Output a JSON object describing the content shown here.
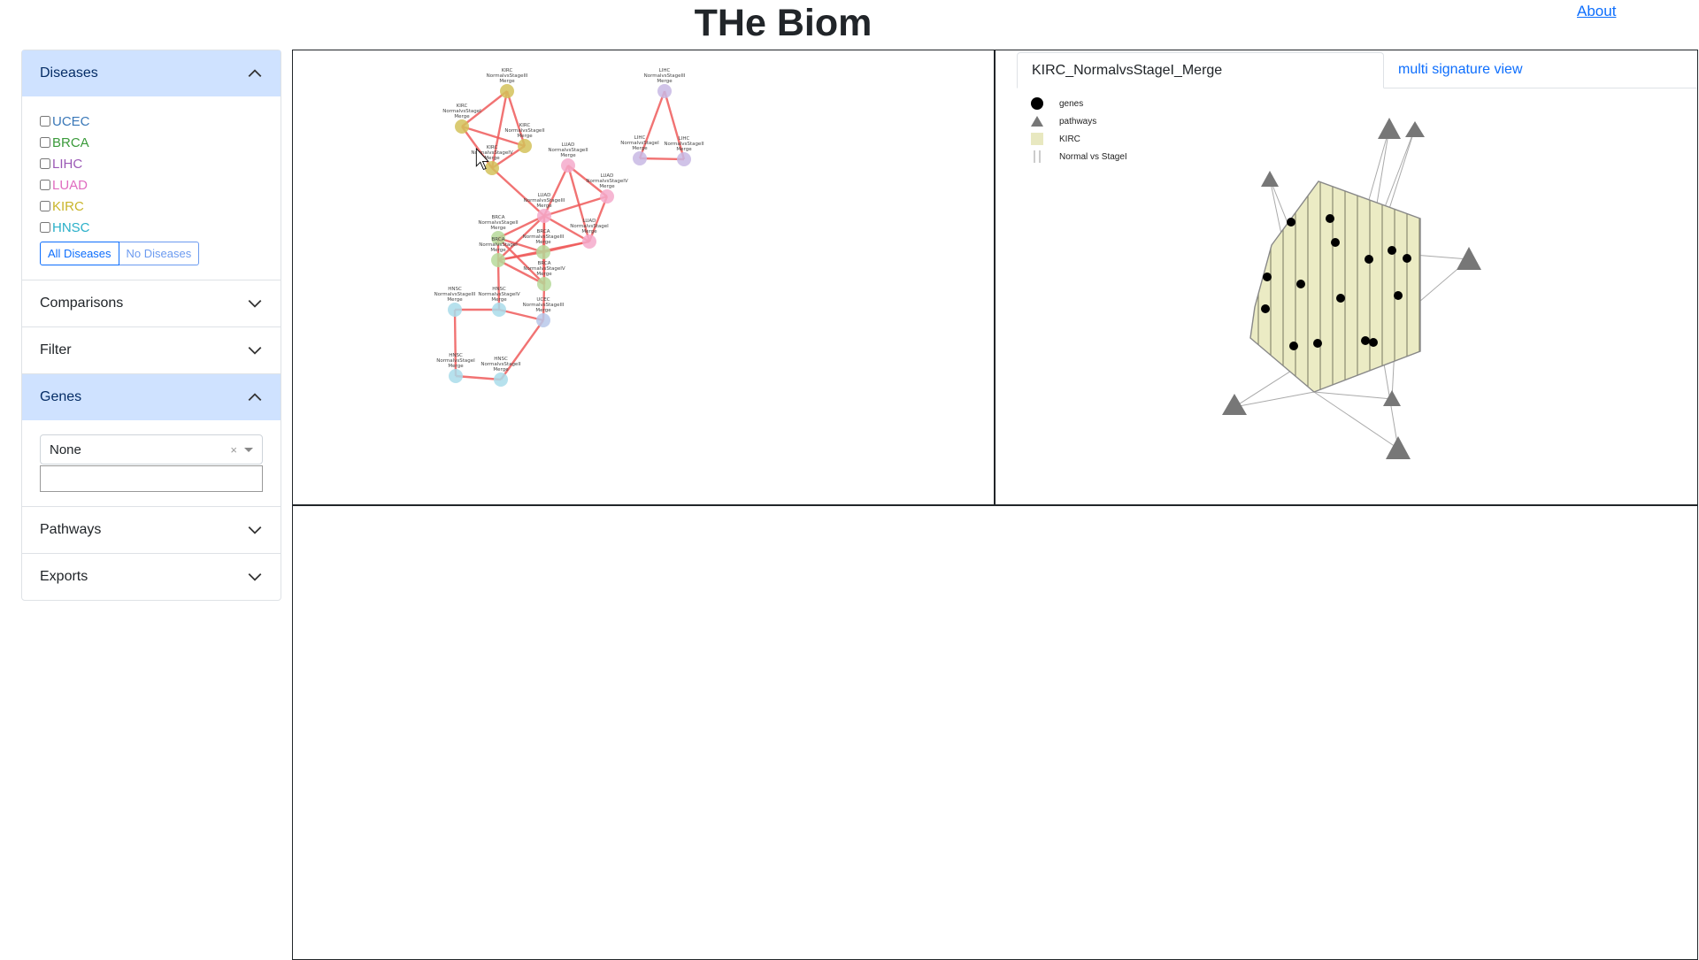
{
  "header": {
    "title": "THe Biom",
    "about_label": "About"
  },
  "sidebar": {
    "diseases": {
      "label": "Diseases",
      "items": [
        {
          "label": "UCEC",
          "color": "#3a78b8"
        },
        {
          "label": "BRCA",
          "color": "#3a9a3a"
        },
        {
          "label": "LIHC",
          "color": "#9b59b6"
        },
        {
          "label": "LUAD",
          "color": "#e06cc0"
        },
        {
          "label": "KIRC",
          "color": "#c9b52a"
        },
        {
          "label": "HNSC",
          "color": "#2ab0c9"
        }
      ],
      "all_button": "All Diseases",
      "none_button": "No Diseases"
    },
    "comparisons_label": "Comparisons",
    "filter_label": "Filter",
    "genes": {
      "label": "Genes",
      "selected": "None",
      "clear_glyph": "×",
      "input_value": ""
    },
    "pathways_label": "Pathways",
    "exports_label": "Exports"
  },
  "detail": {
    "tab_active": "KIRC_NormalvsStageI_Merge",
    "tab_other": "multi signature view",
    "legend": {
      "genes": "genes",
      "pathways": "pathways",
      "disease": "KIRC",
      "comparison": "Normal vs StageI"
    },
    "colors": {
      "hull_fill": "#e8e8c0",
      "hull_stroke": "#888",
      "gene": "#000000",
      "pathway": "#777777"
    }
  },
  "network": {
    "nodes": [
      {
        "id": "kirc1",
        "l1": "KIRC",
        "l2": "NormalvsStageIII",
        "l3": "Merge",
        "color": "#d4c25a"
      },
      {
        "id": "kirc2",
        "l1": "KIRC",
        "l2": "NormalvsStageII",
        "l3": "Merge",
        "color": "#d4c25a"
      },
      {
        "id": "kirc3",
        "l1": "KIRC",
        "l2": "NormalvsStageI",
        "l3": "Merge",
        "color": "#d4c25a"
      },
      {
        "id": "kirc4",
        "l1": "KIRC",
        "l2": "NormalvsStageIV",
        "l3": "Merge",
        "color": "#d4c25a"
      },
      {
        "id": "lihc1",
        "l1": "LIHC",
        "l2": "NormalvsStageIII",
        "l3": "Merge",
        "color": "#c8b8e4"
      },
      {
        "id": "lihc2",
        "l1": "LIHC",
        "l2": "NormalvsStageII",
        "l3": "Merge",
        "color": "#c8b8e4"
      },
      {
        "id": "lihc3",
        "l1": "LIHC",
        "l2": "NormalvsStageI",
        "l3": "Merge",
        "color": "#c8b8e4"
      },
      {
        "id": "luad1",
        "l1": "LUAD",
        "l2": "NormalvsStageII",
        "l3": "Merge",
        "color": "#f4aacb"
      },
      {
        "id": "luad2",
        "l1": "LUAD",
        "l2": "NormalvsStageIII",
        "l3": "Merge",
        "color": "#f4aacb"
      },
      {
        "id": "luad3",
        "l1": "LUAD",
        "l2": "NormalvsStageIV",
        "l3": "Merge",
        "color": "#f4aacb"
      },
      {
        "id": "luad4",
        "l1": "LUAD",
        "l2": "NormalvsStageI",
        "l3": "Merge",
        "color": "#f4aacb"
      },
      {
        "id": "brca1",
        "l1": "BRCA",
        "l2": "NormalvsStageII",
        "l3": "Merge",
        "color": "#b6d99a"
      },
      {
        "id": "brca2",
        "l1": "BRCA",
        "l2": "NormalvsStageI",
        "l3": "Merge",
        "color": "#b6d99a"
      },
      {
        "id": "brca3",
        "l1": "BRCA",
        "l2": "NormalvsStageIII",
        "l3": "Merge",
        "color": "#b6d99a"
      },
      {
        "id": "brca4",
        "l1": "BRCA",
        "l2": "NormalvsStageIV",
        "l3": "Merge",
        "color": "#b6d99a"
      },
      {
        "id": "hnsc1",
        "l1": "HNSC",
        "l2": "NormalvsStageIII",
        "l3": "Merge",
        "color": "#a9dcea"
      },
      {
        "id": "hnsc2",
        "l1": "HNSC",
        "l2": "NormalvsStageIV",
        "l3": "Merge",
        "color": "#a9dcea"
      },
      {
        "id": "ucec1",
        "l1": "UCEC",
        "l2": "NormalvsStageIII",
        "l3": "Merge",
        "color": "#b7c8ea"
      },
      {
        "id": "hnsc3",
        "l1": "HNSC",
        "l2": "NormalvsStageI",
        "l3": "Merge",
        "color": "#a9dcea"
      },
      {
        "id": "hnsc4",
        "l1": "HNSC",
        "l2": "NormalvsStageII",
        "l3": "Merge",
        "color": "#a9dcea"
      }
    ],
    "edges": [
      [
        "kirc1",
        "kirc2"
      ],
      [
        "kirc1",
        "kirc3"
      ],
      [
        "kirc1",
        "kirc4"
      ],
      [
        "kirc2",
        "kirc3"
      ],
      [
        "kirc2",
        "kirc4"
      ],
      [
        "kirc3",
        "kirc4"
      ],
      [
        "lihc1",
        "lihc2"
      ],
      [
        "lihc1",
        "lihc3"
      ],
      [
        "lihc2",
        "lihc3"
      ],
      [
        "kirc4",
        "luad2"
      ],
      [
        "luad1",
        "luad2"
      ],
      [
        "luad1",
        "luad3"
      ],
      [
        "luad1",
        "luad4"
      ],
      [
        "luad2",
        "luad3"
      ],
      [
        "luad2",
        "luad4"
      ],
      [
        "luad3",
        "luad4"
      ],
      [
        "luad2",
        "brca1"
      ],
      [
        "luad2",
        "brca2"
      ],
      [
        "luad2",
        "brca3"
      ],
      [
        "luad2",
        "brca4"
      ],
      [
        "luad4",
        "brca3"
      ],
      [
        "luad4",
        "brca2"
      ],
      [
        "brca1",
        "brca2"
      ],
      [
        "brca1",
        "brca3"
      ],
      [
        "brca1",
        "brca4"
      ],
      [
        "brca2",
        "brca3"
      ],
      [
        "brca2",
        "brca4"
      ],
      [
        "brca3",
        "brca4"
      ],
      [
        "brca2",
        "hnsc2"
      ],
      [
        "hnsc1",
        "hnsc2"
      ],
      [
        "hnsc1",
        "hnsc3"
      ],
      [
        "hnsc2",
        "ucec1"
      ],
      [
        "hnsc3",
        "hnsc4"
      ],
      [
        "ucec1",
        "hnsc4"
      ],
      [
        "brca4",
        "ucec1"
      ]
    ]
  }
}
